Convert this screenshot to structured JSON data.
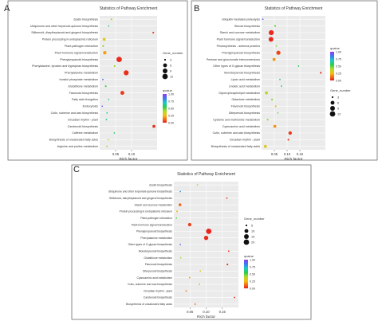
{
  "chart_data": [
    {
      "panel_label": "A",
      "type": "scatter",
      "title": "Statistics of Pathway Enrichment",
      "xlabel": "Rich factor",
      "xlim": [
        0.0,
        0.18
      ],
      "xticks": [
        0.05,
        0.1
      ],
      "xtick_labels": [
        "0.05",
        "0.10"
      ],
      "grid": true,
      "size_legend": {
        "title": "Gene_number",
        "values": [
          3,
          6,
          9,
          12
        ]
      },
      "color_legend": {
        "title": "qvalue",
        "ticks": [
          "1.00",
          "0.75",
          "0.50",
          "0.25",
          "0.00"
        ]
      },
      "points": [
        {
          "term": "Zeatin biosynthesis",
          "x": 0.037,
          "genes": 3,
          "q": 0.4
        },
        {
          "term": "Ubiquinone and other terpenoid-quinone biosynthesis",
          "x": 0.028,
          "genes": 2,
          "q": 0.62
        },
        {
          "term": "Stilbenoid, diarylheptanoid and gingerol biosynthesis",
          "x": 0.168,
          "genes": 3,
          "q": 0.06
        },
        {
          "term": "Protein processing in endoplasmic reticulum",
          "x": 0.014,
          "genes": 4,
          "q": 0.3
        },
        {
          "term": "Plant-pathogen interaction",
          "x": 0.011,
          "genes": 3,
          "q": 0.45
        },
        {
          "term": "Plant hormone signal transduction",
          "x": 0.016,
          "genes": 5,
          "q": 0.2
        },
        {
          "term": "Phenylpropanoid biosynthesis",
          "x": 0.061,
          "genes": 12,
          "q": 0.02
        },
        {
          "term": "Phenylalanine, tyrosine and tryptophan biosynthesis",
          "x": 0.047,
          "genes": 3,
          "q": 0.42
        },
        {
          "term": "Phenylalanine metabolism",
          "x": 0.083,
          "genes": 10,
          "q": 0.03
        },
        {
          "term": "Inositol phosphate metabolism",
          "x": 0.01,
          "genes": 2,
          "q": 0.88
        },
        {
          "term": "Glutathione metabolism",
          "x": 0.019,
          "genes": 3,
          "q": 0.52
        },
        {
          "term": "Flavonoid biosynthesis",
          "x": 0.071,
          "genes": 6,
          "q": 0.04
        },
        {
          "term": "Fatty acid elongation",
          "x": 0.028,
          "genes": 2,
          "q": 0.62
        },
        {
          "term": "Endocytosis",
          "x": 0.008,
          "genes": 2,
          "q": 0.92
        },
        {
          "term": "Cutin, suberine and wax biosynthesis",
          "x": 0.023,
          "genes": 2,
          "q": 0.65
        },
        {
          "term": "Circadian rhythm - plant",
          "x": 0.021,
          "genes": 2,
          "q": 0.64
        },
        {
          "term": "Carotenoid biosynthesis",
          "x": 0.17,
          "genes": 4,
          "q": 0.03
        },
        {
          "term": "Caffeine metabolism",
          "x": 0.046,
          "genes": 1,
          "q": 0.58
        },
        {
          "term": "Biosynthesis of unsaturated fatty acids",
          "x": 0.027,
          "genes": 2,
          "q": 0.38
        },
        {
          "term": "Arginine and proline metabolism",
          "x": 0.023,
          "genes": 2,
          "q": 0.44
        }
      ]
    },
    {
      "panel_label": "B",
      "type": "scatter",
      "title": "Statistics of Pathway Enrichment",
      "xlabel": "Rich factor",
      "xlim": [
        0.0,
        0.25
      ],
      "xticks": [
        0.05,
        0.1,
        0.15
      ],
      "xtick_labels": [
        "0.05",
        "0.10",
        "0.15"
      ],
      "grid": true,
      "size_legend": {
        "title": "Gene_number",
        "values": [
          3,
          6,
          9,
          12
        ]
      },
      "color_legend": {
        "title": "qvalue",
        "ticks": [
          "1.00",
          "0.75",
          "0.50",
          "0.25",
          "0.00"
        ]
      },
      "points": [
        {
          "term": "Ubiquitin mediated proteolysis",
          "x": 0.005,
          "genes": 2,
          "q": 0.9
        },
        {
          "term": "Steroid biosynthesis",
          "x": 0.053,
          "genes": 3,
          "q": 0.48
        },
        {
          "term": "Starch and sucrose metabolism",
          "x": 0.038,
          "genes": 10,
          "q": 0.02
        },
        {
          "term": "Plant hormone signal transduction",
          "x": 0.037,
          "genes": 9,
          "q": 0.02
        },
        {
          "term": "Photosynthesis - antenna proteins",
          "x": 0.058,
          "genes": 2,
          "q": 0.45
        },
        {
          "term": "Phenylpropanoid biosynthesis",
          "x": 0.066,
          "genes": 7,
          "q": 0.06
        },
        {
          "term": "Pentose and glucuronate interconversions",
          "x": 0.049,
          "genes": 4,
          "q": 0.18
        },
        {
          "term": "Other types of O-glycan biosynthesis",
          "x": 0.145,
          "genes": 1,
          "q": 0.55
        },
        {
          "term": "Monoterpenoid biosynthesis",
          "x": 0.232,
          "genes": 3,
          "q": 0.02
        },
        {
          "term": "Lipoic acid metabolism",
          "x": 0.072,
          "genes": 1,
          "q": 0.6
        },
        {
          "term": "Linoleic acid metabolism",
          "x": 0.078,
          "genes": 1,
          "q": 0.55
        },
        {
          "term": "Glycerophospholipid metabolism",
          "x": 0.019,
          "genes": 4,
          "q": 0.38
        },
        {
          "term": "Galactose metabolism",
          "x": 0.041,
          "genes": 3,
          "q": 0.45
        },
        {
          "term": "Flavonoid biosynthesis",
          "x": 0.055,
          "genes": 3,
          "q": 0.3
        },
        {
          "term": "Diterpenoid biosynthesis",
          "x": 0.064,
          "genes": 2,
          "q": 0.45
        },
        {
          "term": "Cysteine and methionine metabolism",
          "x": 0.024,
          "genes": 3,
          "q": 0.44
        },
        {
          "term": "Cyanoamino acid metabolism",
          "x": 0.052,
          "genes": 4,
          "q": 0.18
        },
        {
          "term": "Cutin, suberine and wax biosynthesis",
          "x": 0.112,
          "genes": 5,
          "q": 0.04
        },
        {
          "term": "Circadian rhythm - plant",
          "x": 0.105,
          "genes": 3,
          "q": 0.05
        },
        {
          "term": "Biosynthesis of unsaturated fatty acids",
          "x": 0.015,
          "genes": 4,
          "q": 0.3
        }
      ]
    },
    {
      "panel_label": "C",
      "type": "scatter",
      "title": "Statistics of Pathway Enrichment",
      "xlabel": "Rich factor",
      "xlim": [
        0.0,
        0.2
      ],
      "xticks": [
        0.05,
        0.1,
        0.15
      ],
      "xtick_labels": [
        "0.05",
        "0.10",
        "0.15"
      ],
      "grid": true,
      "size_legend": {
        "title": "Gene_number",
        "values": [
          5,
          10,
          15,
          20
        ]
      },
      "color_legend": {
        "title": "qvalue",
        "ticks": [
          "1.00",
          "0.75",
          "0.50",
          "0.25",
          "0.00"
        ]
      },
      "points": [
        {
          "term": "Zeatin biosynthesis",
          "x": 0.073,
          "genes": 3,
          "q": 0.35
        },
        {
          "term": "Ubiquinone and other terpenoid-quinone biosynthesis",
          "x": 0.02,
          "genes": 2,
          "q": 0.8
        },
        {
          "term": "Stilbenoid, diarylheptanoid and gingerol biosynthesis",
          "x": 0.164,
          "genes": 4,
          "q": 0.03
        },
        {
          "term": "Starch and sucrose metabolism",
          "x": 0.019,
          "genes": 6,
          "q": 0.1
        },
        {
          "term": "Protein processing in endoplasmic reticulum",
          "x": 0.01,
          "genes": 5,
          "q": 0.25
        },
        {
          "term": "Plant-pathogen interaction",
          "x": 0.008,
          "genes": 3,
          "q": 0.5
        },
        {
          "term": "Plant hormone signal transduction",
          "x": 0.049,
          "genes": 8,
          "q": 0.05
        },
        {
          "term": "Phenylpropanoid biosynthesis",
          "x": 0.108,
          "genes": 20,
          "q": 0.01
        },
        {
          "term": "Phenylalanine metabolism",
          "x": 0.1,
          "genes": 12,
          "q": 0.02
        },
        {
          "term": "Other types of O-glycan biosynthesis",
          "x": 0.02,
          "genes": 2,
          "q": 0.88
        },
        {
          "term": "Monoterpenoid biosynthesis",
          "x": 0.17,
          "genes": 3,
          "q": 0.04
        },
        {
          "term": "Glutathione metabolism",
          "x": 0.021,
          "genes": 4,
          "q": 0.42
        },
        {
          "term": "Flavonoid biosynthesis",
          "x": 0.166,
          "genes": 5,
          "q": 0.02
        },
        {
          "term": "Diterpenoid biosynthesis",
          "x": 0.082,
          "genes": 3,
          "q": 0.3
        },
        {
          "term": "Cyanoamino acid metabolism",
          "x": 0.049,
          "genes": 4,
          "q": 0.2
        },
        {
          "term": "Cutin, suberine and wax biosynthesis",
          "x": 0.079,
          "genes": 3,
          "q": 0.45
        },
        {
          "term": "Circadian rhythm - plant",
          "x": 0.038,
          "genes": 3,
          "q": 0.15
        },
        {
          "term": "Carotenoid biosynthesis",
          "x": 0.188,
          "genes": 4,
          "q": 0.02
        },
        {
          "term": "Biosynthesis of unsaturated fatty acids",
          "x": 0.066,
          "genes": 3,
          "q": 0.1
        }
      ]
    }
  ]
}
